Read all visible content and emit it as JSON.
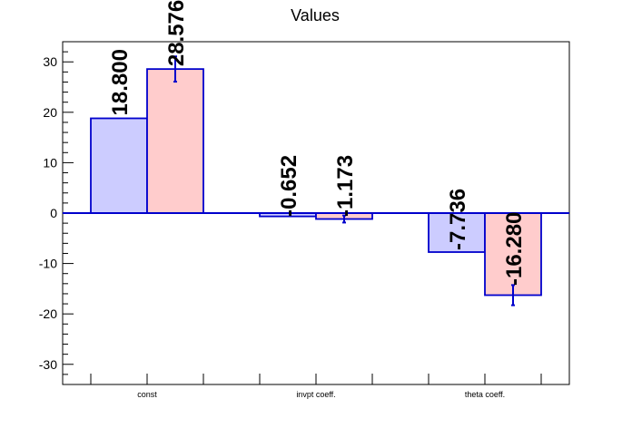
{
  "chart_data": {
    "type": "bar",
    "title": "Values",
    "xlabel": "",
    "ylabel": "",
    "categories": [
      "const",
      "invpt coeff.",
      "theta coeff."
    ],
    "ylim": [
      -34,
      34
    ],
    "yticks": [
      -30,
      -20,
      -10,
      0,
      10,
      20,
      30
    ],
    "grid": false,
    "series": [
      {
        "values": [
          18.8,
          -0.652,
          -7.736
        ],
        "labels": [
          "18.800",
          "-0.652",
          "-7.736"
        ],
        "errors": [
          0,
          0,
          0
        ],
        "fill": "#ccccff",
        "stroke": "#0000cc"
      },
      {
        "values": [
          28.576,
          -1.173,
          -16.28
        ],
        "labels": [
          "28.576",
          "-1.173",
          "-16.280"
        ],
        "errors": [
          2.5,
          0.7,
          2.0
        ],
        "fill": "#ffcccc",
        "stroke": "#0000cc"
      }
    ],
    "zero_line_color": "#0000cc",
    "axis_color": "#000000"
  }
}
